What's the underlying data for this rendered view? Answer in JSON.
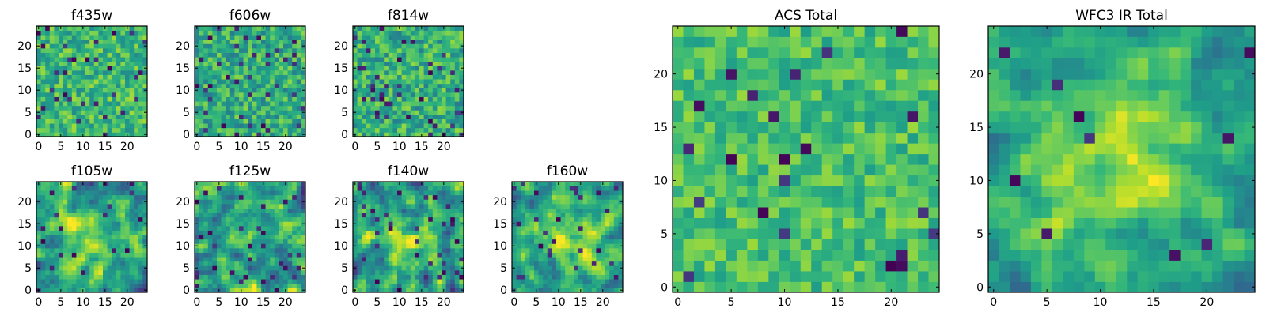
{
  "figure": {
    "colormap": "viridis",
    "pixel_grid": [
      25,
      25
    ],
    "colors": {
      "low": "#440154",
      "high": "#fde725",
      "frame": "#000000",
      "background": "#ffffff"
    }
  },
  "chart_data": [
    {
      "type": "heatmap",
      "title": "f435w",
      "xlim": [
        -0.5,
        24.5
      ],
      "ylim": [
        -0.5,
        24.5
      ],
      "xticks": [
        0,
        5,
        10,
        15,
        20
      ],
      "yticks": [
        0,
        5,
        10,
        15,
        20
      ],
      "blob": null,
      "seed": 11,
      "smooth": 0,
      "mean": 0.66,
      "noise": 0.2,
      "dark_fraction": 0.05
    },
    {
      "type": "heatmap",
      "title": "f606w",
      "xlim": [
        -0.5,
        24.5
      ],
      "ylim": [
        -0.5,
        24.5
      ],
      "xticks": [
        0,
        5,
        10,
        15,
        20
      ],
      "yticks": [
        0,
        5,
        10,
        15,
        20
      ],
      "blob": null,
      "seed": 23,
      "smooth": 0,
      "mean": 0.62,
      "noise": 0.22,
      "dark_fraction": 0.06
    },
    {
      "type": "heatmap",
      "title": "f814w",
      "xlim": [
        -0.5,
        24.5
      ],
      "ylim": [
        -0.5,
        24.5
      ],
      "xticks": [
        0,
        5,
        10,
        15,
        20
      ],
      "yticks": [
        0,
        5,
        10,
        15,
        20
      ],
      "blob": null,
      "seed": 37,
      "smooth": 0,
      "mean": 0.64,
      "noise": 0.22,
      "dark_fraction": 0.06
    },
    {
      "type": "heatmap",
      "title": "f105w",
      "xlim": [
        -0.5,
        24.5
      ],
      "ylim": [
        -0.5,
        24.5
      ],
      "xticks": [
        0,
        5,
        10,
        15,
        20
      ],
      "yticks": [
        0,
        5,
        10,
        15,
        20
      ],
      "blob": {
        "x": 12,
        "y": 11,
        "sigma": 5,
        "amp": 0.28
      },
      "seed": 41,
      "smooth": 1,
      "mean": 0.55,
      "noise": 0.24,
      "dark_fraction": 0.04
    },
    {
      "type": "heatmap",
      "title": "f125w",
      "xlim": [
        -0.5,
        24.5
      ],
      "ylim": [
        -0.5,
        24.5
      ],
      "xticks": [
        0,
        5,
        10,
        15,
        20
      ],
      "yticks": [
        0,
        5,
        10,
        15,
        20
      ],
      "blob": null,
      "seed": 53,
      "smooth": 1,
      "mean": 0.58,
      "noise": 0.26,
      "dark_fraction": 0.04
    },
    {
      "type": "heatmap",
      "title": "f140w",
      "xlim": [
        -0.5,
        24.5
      ],
      "ylim": [
        -0.5,
        24.5
      ],
      "xticks": [
        0,
        5,
        10,
        15,
        20
      ],
      "yticks": [
        0,
        5,
        10,
        15,
        20
      ],
      "blob": {
        "x": 12,
        "y": 11,
        "sigma": 5,
        "amp": 0.18
      },
      "seed": 67,
      "smooth": 1,
      "mean": 0.56,
      "noise": 0.26,
      "dark_fraction": 0.05
    },
    {
      "type": "heatmap",
      "title": "f160w",
      "xlim": [
        -0.5,
        24.5
      ],
      "ylim": [
        -0.5,
        24.5
      ],
      "xticks": [
        0,
        5,
        10,
        15,
        20
      ],
      "yticks": [
        0,
        5,
        10,
        15,
        20
      ],
      "blob": {
        "x": 12,
        "y": 11,
        "sigma": 4.5,
        "amp": 0.3
      },
      "seed": 79,
      "smooth": 1,
      "mean": 0.58,
      "noise": 0.22,
      "dark_fraction": 0.04
    },
    {
      "type": "heatmap",
      "title": "ACS Total",
      "xlim": [
        -0.5,
        24.5
      ],
      "ylim": [
        -0.5,
        24.5
      ],
      "xticks": [
        0,
        5,
        10,
        15,
        20
      ],
      "yticks": [
        0,
        5,
        10,
        15,
        20
      ],
      "blob": null,
      "seed": 97,
      "smooth": 0,
      "mean": 0.7,
      "noise": 0.16,
      "dark_fraction": 0.04
    },
    {
      "type": "heatmap",
      "title": "WFC3 IR Total",
      "xlim": [
        -0.5,
        24.5
      ],
      "ylim": [
        -0.5,
        24.5
      ],
      "xticks": [
        0,
        5,
        10,
        15,
        20
      ],
      "yticks": [
        0,
        5,
        10,
        15,
        20
      ],
      "blob": {
        "x": 11.5,
        "y": 11,
        "sigma": 5.5,
        "amp": 0.35
      },
      "seed": 131,
      "smooth": 1,
      "mean": 0.55,
      "noise": 0.16,
      "dark_fraction": 0.02
    }
  ]
}
